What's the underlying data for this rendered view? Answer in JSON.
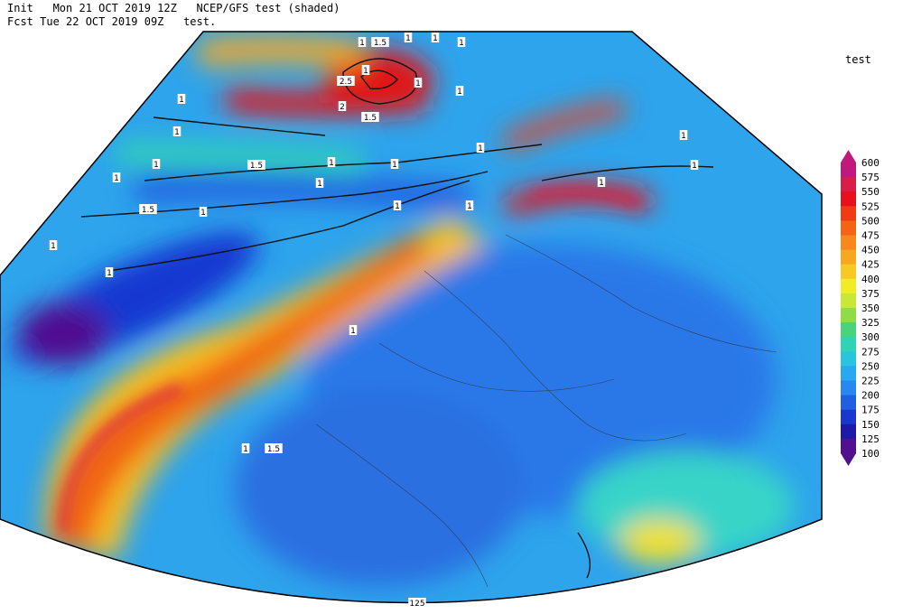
{
  "header": {
    "line1": "Init   Mon 21 OCT 2019 12Z   NCEP/GFS test (shaded)",
    "line2": "Fcst Tue 22 OCT 2019 09Z   test."
  },
  "colorbar": {
    "title": "test",
    "ticks": [
      600,
      575,
      550,
      525,
      500,
      475,
      450,
      425,
      400,
      375,
      350,
      325,
      300,
      275,
      250,
      225,
      200,
      175,
      150,
      125,
      100
    ],
    "colors": [
      "#c0187c",
      "#d81e48",
      "#e8101c",
      "#f03c14",
      "#f46414",
      "#f8881c",
      "#f8a820",
      "#f8c824",
      "#f0ec28",
      "#c8e838",
      "#90dc48",
      "#48d47c",
      "#30d4b4",
      "#28c4e0",
      "#28a8f0",
      "#2888f0",
      "#2060e0",
      "#1838d0",
      "#2018a8",
      "#501090"
    ]
  },
  "contour_labels": [
    "1",
    "1.5",
    "1",
    "1",
    "1",
    "1",
    "2.5",
    "1",
    "1",
    "2",
    "1.5",
    "1",
    "1",
    "1",
    "1",
    "1.5",
    "1",
    "1",
    "1",
    "1.5",
    "1",
    "1",
    "1",
    "1",
    "1",
    "1",
    "1",
    "1",
    "1",
    "1",
    "1",
    "1.5",
    "125"
  ]
}
